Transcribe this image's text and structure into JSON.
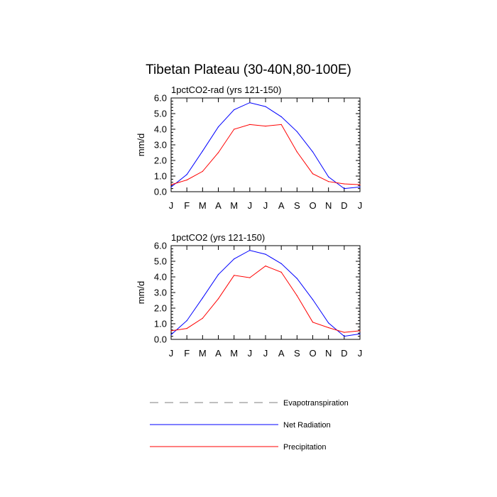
{
  "figure": {
    "title": "Tibetan Plateau (30-40N,80-100E)"
  },
  "legend": {
    "items": [
      {
        "label": "Evapotranspiration",
        "color": "#999999",
        "dashed": true
      },
      {
        "label": "Net Radiation",
        "color": "#0000ff",
        "dashed": false
      },
      {
        "label": "Precipitation",
        "color": "#ff0000",
        "dashed": false
      }
    ]
  },
  "chart_data": [
    {
      "type": "line",
      "title": "1pctCO2-rad (yrs 121-150)",
      "ylabel": "mm/d",
      "xlabel": "",
      "categories": [
        "J",
        "F",
        "M",
        "A",
        "M",
        "J",
        "J",
        "A",
        "S",
        "O",
        "N",
        "D",
        "J"
      ],
      "ylim": [
        0,
        6
      ],
      "yticks": [
        "0.0",
        "1.0",
        "2.0",
        "3.0",
        "4.0",
        "5.0",
        "6.0"
      ],
      "series": [
        {
          "name": "Net Radiation",
          "color": "#0000ff",
          "values": [
            0.3,
            1.1,
            2.6,
            4.15,
            5.25,
            5.7,
            5.45,
            4.8,
            3.85,
            2.55,
            0.95,
            0.2,
            0.3
          ]
        },
        {
          "name": "Precipitation",
          "color": "#ff0000",
          "values": [
            0.45,
            0.75,
            1.3,
            2.5,
            4.0,
            4.3,
            4.2,
            4.3,
            2.55,
            1.15,
            0.65,
            0.5,
            0.45
          ]
        }
      ]
    },
    {
      "type": "line",
      "title": "1pctCO2 (yrs 121-150)",
      "ylabel": "mm/d",
      "xlabel": "",
      "categories": [
        "J",
        "F",
        "M",
        "A",
        "M",
        "J",
        "J",
        "A",
        "S",
        "O",
        "N",
        "D",
        "J"
      ],
      "ylim": [
        0,
        6
      ],
      "yticks": [
        "0.0",
        "1.0",
        "2.0",
        "3.0",
        "4.0",
        "5.0",
        "6.0"
      ],
      "series": [
        {
          "name": "Net Radiation",
          "color": "#0000ff",
          "values": [
            0.3,
            1.2,
            2.65,
            4.15,
            5.15,
            5.7,
            5.45,
            4.85,
            3.9,
            2.55,
            1.05,
            0.2,
            0.35
          ]
        },
        {
          "name": "Precipitation",
          "color": "#ff0000",
          "values": [
            0.55,
            0.7,
            1.35,
            2.6,
            4.1,
            3.95,
            4.7,
            4.3,
            2.8,
            1.1,
            0.75,
            0.45,
            0.55
          ]
        }
      ]
    }
  ]
}
